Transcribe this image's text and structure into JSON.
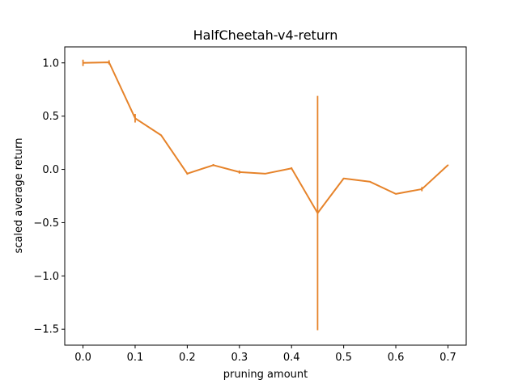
{
  "chart_data": {
    "type": "line",
    "title": "HalfCheetah-v4-return",
    "xlabel": "pruning amount",
    "ylabel": "scaled average return",
    "xlim": [
      -0.035,
      0.735
    ],
    "ylim": [
      -1.65,
      1.15
    ],
    "x_ticks": [
      0.0,
      0.1,
      0.2,
      0.3,
      0.4,
      0.5,
      0.6,
      0.7
    ],
    "x_tick_labels": [
      "0.0",
      "0.1",
      "0.2",
      "0.3",
      "0.4",
      "0.5",
      "0.6",
      "0.7"
    ],
    "y_ticks": [
      1.0,
      0.5,
      0.0,
      -0.5,
      -1.0,
      -1.5
    ],
    "y_tick_labels": [
      "1.0",
      "0.5",
      "0.0",
      "−0.5",
      "−1.0",
      "−1.5"
    ],
    "grid": false,
    "color": "#e6832a",
    "x": [
      0.0,
      0.05,
      0.1,
      0.15,
      0.2,
      0.25,
      0.3,
      0.35,
      0.4,
      0.45,
      0.5,
      0.55,
      0.6,
      0.65,
      0.7
    ],
    "y": [
      1.0,
      1.005,
      0.48,
      0.32,
      -0.04,
      0.04,
      -0.025,
      -0.04,
      0.01,
      -0.41,
      -0.085,
      -0.115,
      -0.23,
      -0.185,
      0.04
    ],
    "error": [
      0.03,
      0.02,
      0.04,
      0.005,
      0.01,
      0.01,
      0.015,
      0.005,
      0.01,
      1.1,
      0.005,
      0.005,
      0.005,
      0.02,
      0.005
    ]
  }
}
